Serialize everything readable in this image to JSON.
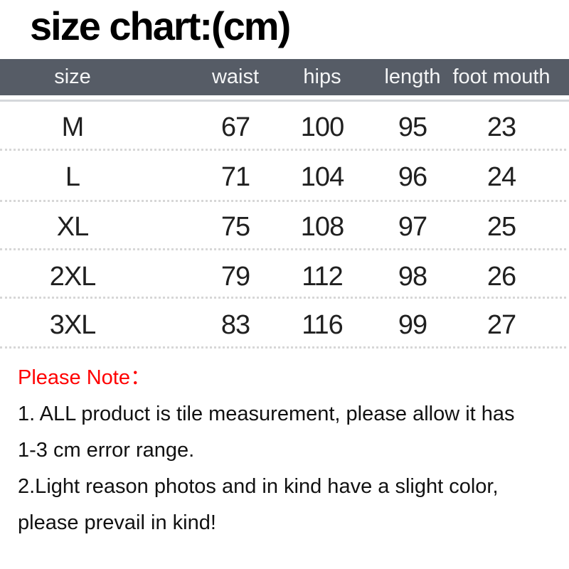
{
  "title": "size chart:(cm)",
  "chart_data": {
    "type": "table",
    "title": "size chart:(cm)",
    "unit": "cm",
    "columns": [
      "size",
      "waist",
      "hips",
      "length",
      "foot mouth"
    ],
    "rows": [
      [
        "M",
        "67",
        "100",
        "95",
        "23"
      ],
      [
        "L",
        "71",
        "104",
        "96",
        "24"
      ],
      [
        "XL",
        "75",
        "108",
        "97",
        "25"
      ],
      [
        "2XL",
        "79",
        "112",
        "98",
        "26"
      ],
      [
        "3XL",
        "83",
        "116",
        "99",
        "27"
      ]
    ]
  },
  "notes": {
    "heading": "Please Note：",
    "line1": "1. ALL product is tile measurement, please allow it has",
    "line2": "1-3 cm error range.",
    "line3": "2.Light reason photos and in kind have a slight color,",
    "line4": "please prevail in kind!"
  },
  "colors": {
    "header_bg": "#565c66",
    "header_text": "#f4f5f6",
    "body_text": "#202020",
    "note_heading": "#ff0000",
    "separator_dots": "#d7d7d7",
    "under_header_line": "#d5d8db",
    "background": "#ffffff"
  }
}
